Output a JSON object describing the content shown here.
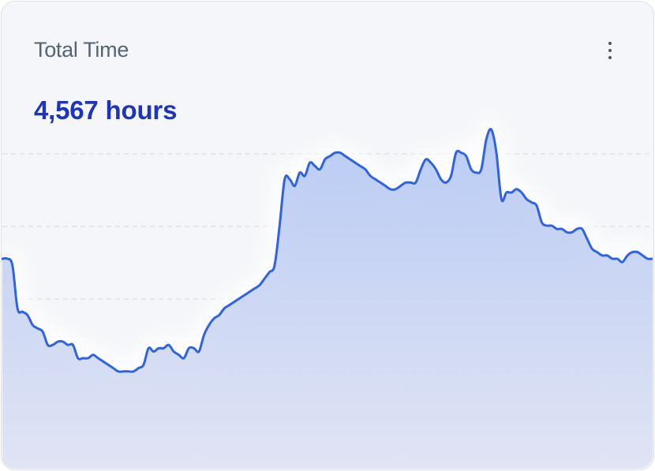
{
  "card": {
    "title": "Total Time",
    "value": "4,567 hours",
    "menu_icon": "more-vertical-icon"
  },
  "colors": {
    "line": "#2f63e0",
    "fill_top": "#aec3f3",
    "fill_bottom": "#dde1f3",
    "value_text": "#1f35b9",
    "grid": "#d3d7e0"
  },
  "chart_data": {
    "type": "area",
    "title": "",
    "xlabel": "",
    "ylabel": "",
    "grid": true,
    "legend": "none",
    "ylim": [
      0,
      100
    ],
    "values": [
      60,
      60,
      58,
      45,
      44,
      43,
      40,
      39,
      38,
      34,
      34,
      35,
      35,
      34,
      34,
      30,
      30,
      30,
      31,
      30,
      29,
      28,
      27,
      26,
      26,
      26,
      26,
      27,
      28,
      33,
      32,
      33,
      33,
      34,
      32,
      31,
      30,
      33,
      33,
      32,
      37,
      40,
      42,
      43,
      45,
      46,
      47,
      48,
      49,
      50,
      51,
      52,
      54,
      56,
      58,
      70,
      84,
      84,
      82,
      86,
      85,
      89,
      88,
      87,
      90,
      91,
      92,
      92,
      91,
      90,
      89,
      88,
      87,
      85,
      84,
      83,
      82,
      81,
      81,
      82,
      83,
      83,
      83,
      87,
      90,
      89,
      87,
      84,
      83,
      85,
      92,
      92,
      91,
      87,
      86,
      87,
      96,
      99,
      92,
      78,
      80,
      80,
      81,
      80,
      78,
      77,
      76,
      71,
      70,
      70,
      69,
      69,
      68,
      68,
      69,
      69,
      66,
      63,
      62,
      61,
      61,
      60,
      60,
      59,
      61,
      62,
      62,
      61,
      60,
      60
    ]
  }
}
